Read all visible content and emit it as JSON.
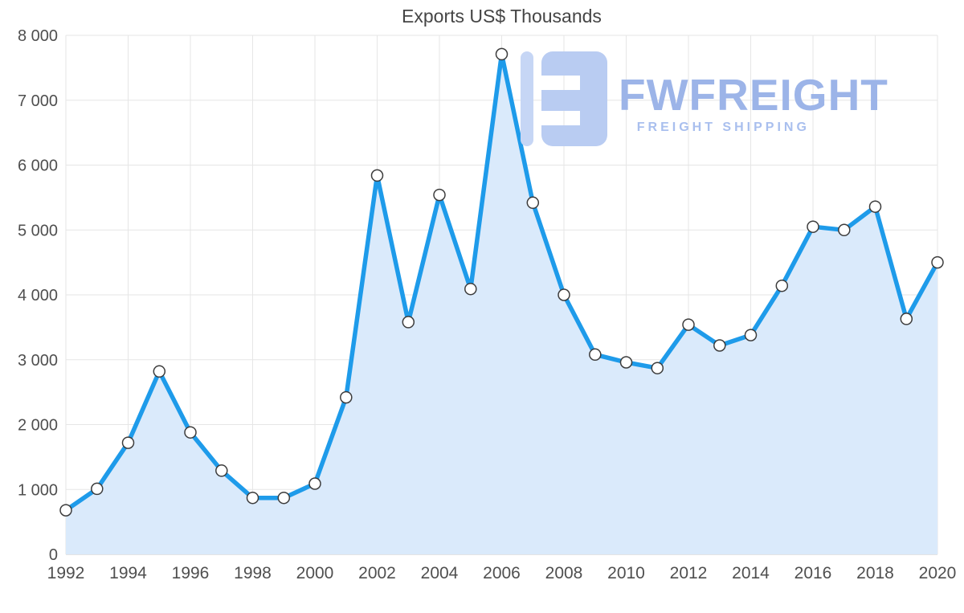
{
  "chart_data": {
    "type": "area",
    "title": "Exports US$ Thousands",
    "xlabel": "",
    "ylabel": "",
    "x": [
      1992,
      1993,
      1994,
      1995,
      1996,
      1997,
      1998,
      1999,
      2000,
      2001,
      2002,
      2003,
      2004,
      2005,
      2006,
      2007,
      2008,
      2009,
      2010,
      2011,
      2012,
      2013,
      2014,
      2015,
      2016,
      2017,
      2018,
      2019,
      2020
    ],
    "values": [
      680,
      1010,
      1720,
      2820,
      1880,
      1290,
      870,
      870,
      1090,
      2420,
      5840,
      3580,
      5540,
      4090,
      7710,
      5420,
      4000,
      3080,
      2960,
      2870,
      3540,
      3220,
      3380,
      4140,
      5050,
      5000,
      5360,
      3630,
      4500
    ],
    "xlim": [
      1992,
      2020
    ],
    "ylim": [
      0,
      8000
    ],
    "x_ticks": [
      1992,
      1994,
      1996,
      1998,
      2000,
      2002,
      2004,
      2006,
      2008,
      2010,
      2012,
      2014,
      2016,
      2018,
      2020
    ],
    "y_ticks": [
      0,
      1000,
      2000,
      3000,
      4000,
      5000,
      6000,
      7000,
      8000
    ],
    "grid": true,
    "legend": "none",
    "line_color": "#1e9bea",
    "area_color": "#daeafb",
    "marker_fill": "#ffffff",
    "marker_stroke": "#3c3c3c",
    "grid_color": "#e6e6e6",
    "axis_line_color": "#c9c9c9",
    "tick_label_color": "#4f4f4f"
  },
  "watermark": {
    "brand": "FWFREIGHT",
    "tagline": "FREIGHT SHIPPING",
    "brand_color": "#9cb4e8",
    "tagline_color": "#a9bfee",
    "logo_color": "#b9ccf2",
    "logo_bar_color": "#c6d6f5"
  }
}
